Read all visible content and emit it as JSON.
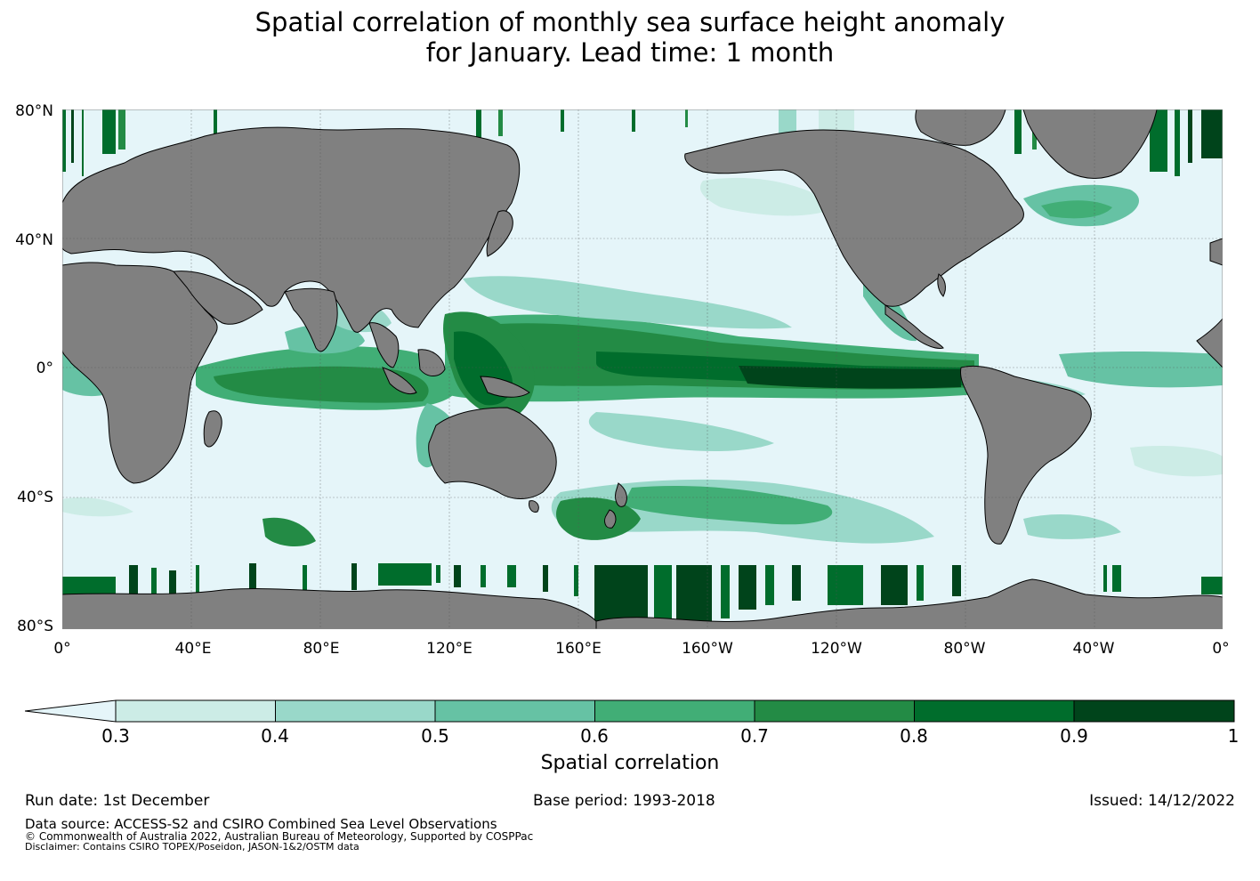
{
  "title": {
    "line1": "Spatial correlation of monthly sea surface height anomaly",
    "line2": "for January. Lead time: 1 month"
  },
  "colors": {
    "ocean_low": "#e5f5f9",
    "land": "#808080",
    "levels": [
      "#ccece6",
      "#99d8c9",
      "#66c2a4",
      "#41ae76",
      "#238b45",
      "#006d2c",
      "#00441b"
    ]
  },
  "map": {
    "lat_labels": [
      "80°N",
      "40°N",
      "0°",
      "40°S",
      "80°S"
    ],
    "lon_labels": [
      "0°",
      "40°E",
      "80°E",
      "120°E",
      "160°E",
      "160°W",
      "120°W",
      "80°W",
      "40°W",
      "0°"
    ]
  },
  "colorbar": {
    "ticks": [
      "0.3",
      "0.4",
      "0.5",
      "0.6",
      "0.7",
      "0.8",
      "0.9",
      "1"
    ],
    "title": "Spatial correlation"
  },
  "footer": {
    "run_date": "Run date: 1st December",
    "base_period": "Base period: 1993-2018",
    "issued": "Issued: 14/12/2022",
    "data_source": "Data source: ACCESS-S2 and CSIRO Combined Sea Level Observations",
    "copyright": "© Commonwealth of Australia 2022, Australian Bureau of Meteorology, Supported by COSPPac",
    "disclaimer": "Disclaimer: Contains CSIRO TOPEX/Poseidon, JASON-1&2/OSTM data"
  }
}
